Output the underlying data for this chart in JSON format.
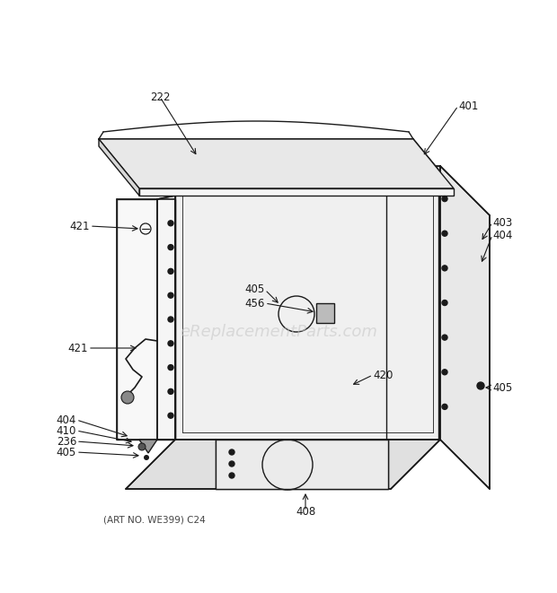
{
  "bg_color": "#ffffff",
  "line_color": "#1a1a1a",
  "fill_white": "#ffffff",
  "fill_light": "#f2f2f2",
  "fill_mid": "#e0e0e0",
  "fill_dark": "#cccccc",
  "watermark": "eReplacementParts.com",
  "watermark_color": "#c8c8c8",
  "footer": "(ART NO. WE399) C24",
  "lw": 1.0
}
